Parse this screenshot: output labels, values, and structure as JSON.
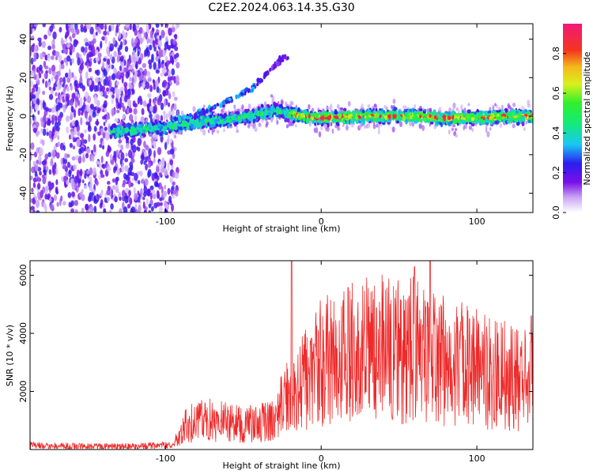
{
  "title": "C2E2.2024.063.14.35.G30",
  "chart_data": [
    {
      "type": "heatmap",
      "xlabel": "Height of straight line (km)",
      "ylabel": "Frequency (Hz)",
      "xlim": [
        -187,
        136
      ],
      "ylim": [
        -50,
        48
      ],
      "xticks": [
        -100,
        0,
        100
      ],
      "yticks": [
        -40,
        -20,
        0,
        20,
        40
      ],
      "colorbar": {
        "label": "Normalized spectral amplitude",
        "range": [
          0,
          0.95
        ],
        "ticks": [
          0.0,
          0.2,
          0.4,
          0.6,
          0.8
        ]
      },
      "ridge": [
        {
          "x": -130,
          "y": -8
        },
        {
          "x": -100,
          "y": -6
        },
        {
          "x": -80,
          "y": -3
        },
        {
          "x": -60,
          "y": -2
        },
        {
          "x": -40,
          "y": 1
        },
        {
          "x": -30,
          "y": 3
        },
        {
          "x": -20,
          "y": 1
        },
        {
          "x": 0,
          "y": -1
        },
        {
          "x": 20,
          "y": 0
        },
        {
          "x": 40,
          "y": 0
        },
        {
          "x": 60,
          "y": 0
        },
        {
          "x": 80,
          "y": -1
        },
        {
          "x": 100,
          "y": -1
        },
        {
          "x": 120,
          "y": 0
        },
        {
          "x": 136,
          "y": 0
        }
      ],
      "harmonic": [
        {
          "x": -90,
          "y": -1
        },
        {
          "x": -70,
          "y": 4
        },
        {
          "x": -55,
          "y": 10
        },
        {
          "x": -45,
          "y": 14
        },
        {
          "x": -35,
          "y": 22
        },
        {
          "x": -25,
          "y": 30
        }
      ],
      "grid": false
    },
    {
      "type": "line",
      "xlabel": "Height of straight line (km)",
      "ylabel": "SNR (10 * v/v)",
      "xlim": [
        -187,
        136
      ],
      "ylim": [
        0,
        6500
      ],
      "xticks": [
        -100,
        0,
        100
      ],
      "yticks": [
        2000,
        4000,
        6000
      ],
      "color": "#ee2a2a",
      "envelope": [
        {
          "x": -187,
          "y": 150
        },
        {
          "x": -150,
          "y": 100
        },
        {
          "x": -120,
          "y": 100
        },
        {
          "x": -95,
          "y": 150
        },
        {
          "x": -88,
          "y": 800
        },
        {
          "x": -75,
          "y": 1100
        },
        {
          "x": -65,
          "y": 1000
        },
        {
          "x": -50,
          "y": 900
        },
        {
          "x": -40,
          "y": 900
        },
        {
          "x": -30,
          "y": 1000
        },
        {
          "x": -25,
          "y": 1600
        },
        {
          "x": -20,
          "y": 2000
        },
        {
          "x": -10,
          "y": 2500
        },
        {
          "x": 0,
          "y": 3000
        },
        {
          "x": 20,
          "y": 3300
        },
        {
          "x": 40,
          "y": 3500
        },
        {
          "x": 60,
          "y": 3400
        },
        {
          "x": 80,
          "y": 3100
        },
        {
          "x": 100,
          "y": 2800
        },
        {
          "x": 120,
          "y": 2500
        },
        {
          "x": 136,
          "y": 2400
        }
      ],
      "peaks": [
        {
          "x": -19,
          "y": 6500
        },
        {
          "x": 60,
          "y": 6300
        },
        {
          "x": 70,
          "y": 6500
        },
        {
          "x": 135,
          "y": 4600
        }
      ],
      "grid": false
    }
  ]
}
